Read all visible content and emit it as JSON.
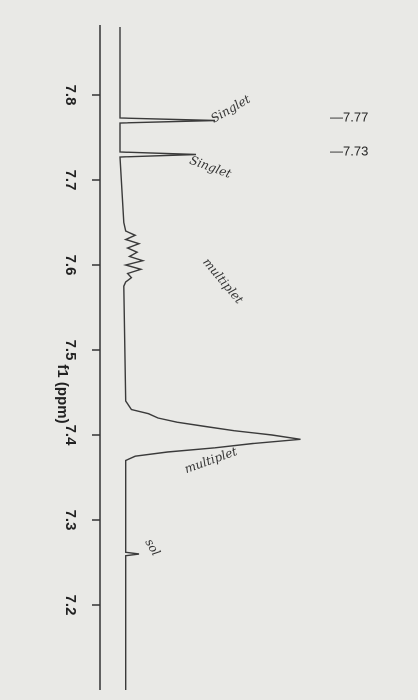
{
  "chart_data": {
    "type": "line",
    "title": "f1 (ppm)",
    "peak_labels": [
      "—7.77",
      "—7.73"
    ],
    "annotations": [
      "Singlet",
      "Singlet",
      "multiplet",
      "multiplet",
      "sol"
    ],
    "x": [
      7.88,
      7.78,
      7.773,
      7.77,
      7.767,
      7.735,
      7.733,
      7.73,
      7.727,
      7.65,
      7.64,
      7.635,
      7.63,
      7.625,
      7.62,
      7.615,
      7.61,
      7.605,
      7.6,
      7.595,
      7.59,
      7.585,
      7.58,
      7.575,
      7.44,
      7.43,
      7.425,
      7.42,
      7.415,
      7.41,
      7.405,
      7.4,
      7.395,
      7.39,
      7.385,
      7.38,
      7.375,
      7.37,
      7.27,
      7.262,
      7.26,
      7.258,
      7.1
    ],
    "values": [
      0,
      0,
      0,
      50,
      0,
      0,
      0,
      40,
      0,
      2,
      3,
      8,
      3,
      10,
      4,
      9,
      5,
      12,
      3,
      11,
      4,
      6,
      3,
      2,
      3,
      6,
      15,
      20,
      30,
      45,
      60,
      80,
      95,
      70,
      50,
      25,
      8,
      3,
      3,
      3,
      10,
      3,
      3
    ],
    "xlim": [
      7.88,
      7.1
    ],
    "xticks": [
      7.8,
      7.7,
      7.6,
      7.5,
      7.4,
      7.3,
      7.2
    ],
    "ylim": [
      0,
      100
    ],
    "color": "#3a3a3a"
  }
}
